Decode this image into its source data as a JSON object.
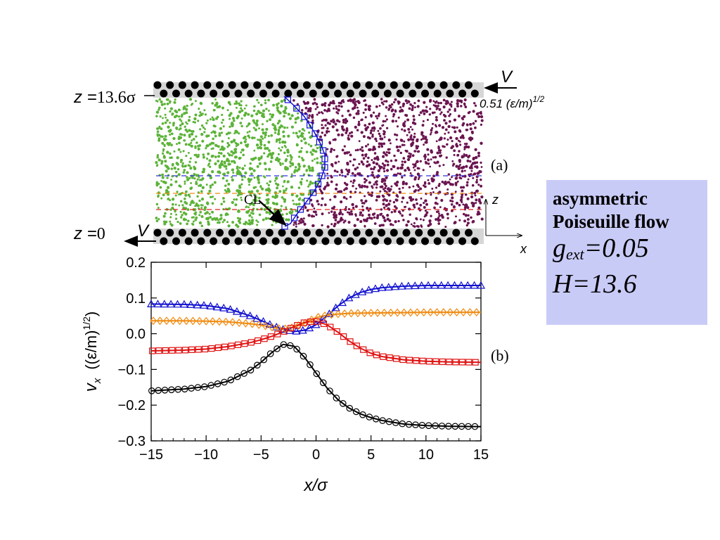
{
  "panel_a": {
    "label": "(a)",
    "top_z_prefix": "z =",
    "top_z_value": "13.6σ",
    "bottom_z_prefix": "z =",
    "bottom_z_value": "0",
    "top_velocity": "V",
    "bottom_velocity": "V",
    "velocity_value": "0.51 (ε/m)",
    "velocity_exp": "1/2",
    "cl_label": "CL",
    "axis_z": "z",
    "axis_x": "x",
    "colors": {
      "left_fluid": "#5cb338",
      "right_fluid": "#6b1450",
      "wall": "#000000",
      "wall_band": "#d6d6d6"
    }
  },
  "panel_b": {
    "label": "(b)"
  },
  "info_box": {
    "line1": "asymmetric",
    "line2": "Poiseuille flow",
    "g_symbol": "g",
    "g_subscript": "ext",
    "g_value": "=0.05",
    "h_text": "H=13.6",
    "background": "#c9cbf7"
  },
  "chart_data": {
    "type": "line",
    "xlabel": "x/σ",
    "ylabel_main": "v",
    "ylabel_sub": "x",
    "ylabel_units": "((ε/m)",
    "ylabel_exp": "1/2",
    "ylabel_close": ")",
    "xlim": [
      -15,
      15
    ],
    "ylim": [
      -0.3,
      0.2
    ],
    "xticks": [
      -15,
      -10,
      -5,
      0,
      5,
      10,
      15
    ],
    "yticks": [
      -0.3,
      -0.2,
      -0.1,
      0.0,
      0.1,
      0.2
    ],
    "xtick_labels": [
      "−15",
      "−10",
      "−5",
      "0",
      "5",
      "10",
      "15"
    ],
    "ytick_labels": [
      "−0.3",
      "−0.2",
      "−0.1",
      "0.0",
      "0.1",
      "0.2"
    ],
    "series": [
      {
        "marker": "triangle",
        "color": "#1010d0",
        "x": [
          -15,
          -12,
          -10,
          -8,
          -6,
          -5,
          -4,
          -3,
          -2,
          -1,
          0,
          1,
          2,
          3,
          4,
          5,
          6,
          8,
          10,
          12,
          15
        ],
        "values": [
          0.083,
          0.082,
          0.079,
          0.07,
          0.05,
          0.037,
          0.023,
          0.012,
          0.006,
          0.01,
          0.025,
          0.05,
          0.078,
          0.1,
          0.115,
          0.124,
          0.129,
          0.133,
          0.135,
          0.135,
          0.135
        ]
      },
      {
        "marker": "diamond",
        "color": "#f08a10",
        "x": [
          -15,
          -12,
          -10,
          -8,
          -6,
          -5,
          -4,
          -3,
          -2,
          -1,
          0,
          1,
          2,
          3,
          5,
          8,
          10,
          12,
          15
        ],
        "values": [
          0.036,
          0.036,
          0.035,
          0.033,
          0.028,
          0.024,
          0.018,
          0.013,
          0.018,
          0.03,
          0.045,
          0.052,
          0.055,
          0.057,
          0.058,
          0.059,
          0.06,
          0.06,
          0.06
        ]
      },
      {
        "marker": "square",
        "color": "#e01010",
        "x": [
          -15,
          -12,
          -10,
          -8,
          -6,
          -5,
          -4,
          -3,
          -2,
          -1,
          0,
          1,
          2,
          3,
          4,
          5,
          6,
          8,
          10,
          12,
          15
        ],
        "values": [
          -0.048,
          -0.046,
          -0.043,
          -0.036,
          -0.025,
          -0.017,
          -0.007,
          0.005,
          0.02,
          0.032,
          0.035,
          0.025,
          0.004,
          -0.02,
          -0.04,
          -0.055,
          -0.064,
          -0.073,
          -0.077,
          -0.079,
          -0.08
        ]
      },
      {
        "marker": "circle",
        "color": "#000000",
        "x": [
          -15,
          -12,
          -10,
          -8,
          -6,
          -5,
          -4,
          -3,
          -2,
          -1,
          0,
          1,
          2,
          3,
          4,
          5,
          6,
          8,
          10,
          12,
          15
        ],
        "values": [
          -0.16,
          -0.155,
          -0.148,
          -0.133,
          -0.103,
          -0.08,
          -0.052,
          -0.03,
          -0.035,
          -0.068,
          -0.11,
          -0.152,
          -0.185,
          -0.208,
          -0.224,
          -0.235,
          -0.243,
          -0.253,
          -0.257,
          -0.259,
          -0.26
        ]
      }
    ]
  }
}
